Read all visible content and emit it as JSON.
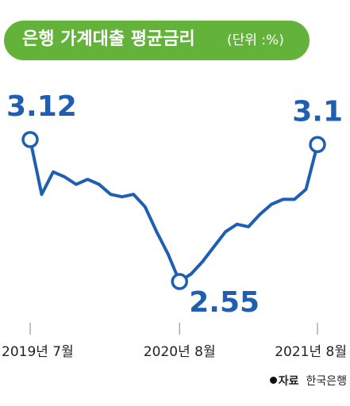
{
  "header": {
    "title": "은행 가계대출 평균금리",
    "unit": "(단위 :%)"
  },
  "colors": {
    "title_background": "#63b33b",
    "line": "#1f5fb3"
  },
  "chart_data": {
    "type": "line",
    "title": "은행 가계대출 평균금리",
    "unit": "(단위 :%)",
    "xlabel": "",
    "ylabel": "",
    "x_ticks": [
      "2019년 7월",
      "2020년 8월",
      "2021년 8월"
    ],
    "x": [
      "2019-07",
      "2019-08",
      "2019-09",
      "2019-10",
      "2019-11",
      "2019-12",
      "2020-01",
      "2020-02",
      "2020-03",
      "2020-04",
      "2020-05",
      "2020-06",
      "2020-07",
      "2020-08",
      "2020-09",
      "2020-10",
      "2020-11",
      "2020-12",
      "2021-01",
      "2021-02",
      "2021-03",
      "2021-04",
      "2021-05",
      "2021-06",
      "2021-07",
      "2021-08"
    ],
    "values": [
      3.12,
      2.9,
      2.99,
      2.97,
      2.94,
      2.96,
      2.94,
      2.9,
      2.89,
      2.9,
      2.85,
      2.75,
      2.66,
      2.55,
      2.58,
      2.63,
      2.69,
      2.75,
      2.78,
      2.77,
      2.82,
      2.86,
      2.88,
      2.88,
      2.92,
      3.1
    ],
    "annotations": [
      {
        "x": "2019-07",
        "label": "3.12"
      },
      {
        "x": "2020-08",
        "label": "2.55"
      },
      {
        "x": "2021-08",
        "label": "3.1"
      }
    ],
    "grid": false,
    "legend": "none"
  },
  "source": {
    "key": "자료",
    "value": "한국은행"
  }
}
